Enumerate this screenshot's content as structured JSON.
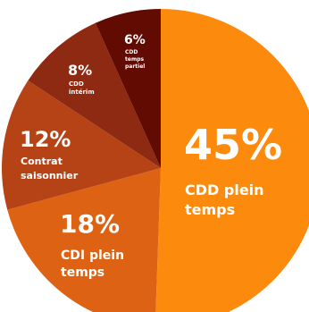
{
  "chart_data": {
    "type": "pie",
    "title": "",
    "slices": [
      {
        "pct": "45%",
        "value": 45,
        "lines": [
          "CDD plein",
          "temps"
        ],
        "color": "#fc8a0c"
      },
      {
        "pct": "18%",
        "value": 18,
        "lines": [
          "CDI plein",
          "temps"
        ],
        "color": "#de6213"
      },
      {
        "pct": "12%",
        "value": 12,
        "lines": [
          "Contrat",
          "saisonnier"
        ],
        "color": "#b64315"
      },
      {
        "pct": "8%",
        "value": 8,
        "lines": [
          "CDD",
          "intérim"
        ],
        "color": "#8f2a12"
      },
      {
        "pct": "6%",
        "value": 6,
        "lines": [
          "CDD",
          "temps",
          "partiel"
        ],
        "color": "#620b02"
      }
    ]
  }
}
